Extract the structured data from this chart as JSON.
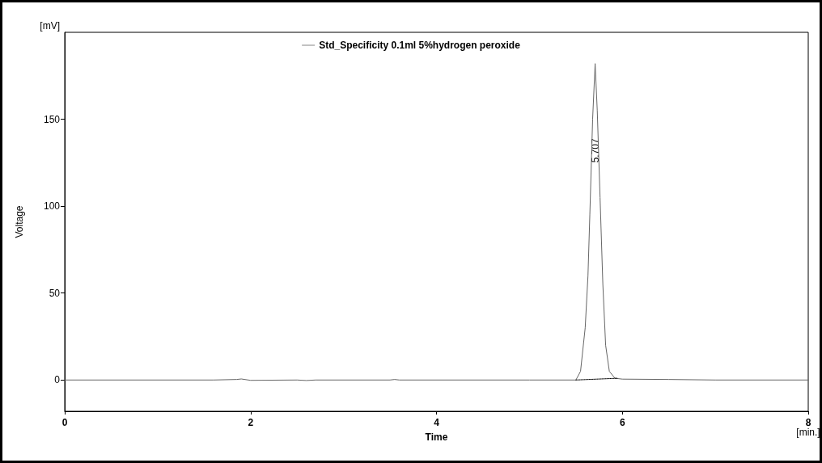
{
  "chart_data": {
    "type": "line",
    "xlabel": "Time",
    "ylabel": "Voltage",
    "xlim": [
      0,
      8
    ],
    "xticks": [
      0,
      2,
      4,
      6,
      8
    ],
    "ylim": [
      -18,
      200
    ],
    "yticks": [
      0,
      50,
      100,
      150
    ],
    "grid": false,
    "legend": "top",
    "marker": "none",
    "annotations": [
      "[mV]",
      "[min.]",
      {
        "text": "5.707",
        "x": 5.707,
        "y": 132
      }
    ],
    "series": [
      {
        "name": "Std_Specificity 0.1ml 5%hydrogen peroxide",
        "color": "#666666",
        "line_style": "solid",
        "x": [
          0,
          1.6,
          1.85,
          1.9,
          1.95,
          2.0,
          2.5,
          2.6,
          2.7,
          3.5,
          3.55,
          3.6,
          5.0,
          5.5,
          5.55,
          5.6,
          5.63,
          5.65,
          5.68,
          5.707,
          5.73,
          5.76,
          5.79,
          5.82,
          5.86,
          5.92,
          6.0,
          6.5,
          7.0,
          8.0
        ],
        "values": [
          0,
          0,
          0.3,
          0.6,
          0.2,
          -0.2,
          0,
          -0.3,
          0,
          0,
          0.3,
          0,
          0,
          0,
          5,
          30,
          60,
          95,
          150,
          182,
          155,
          105,
          55,
          20,
          5,
          1,
          0.5,
          0.3,
          0,
          0
        ]
      },
      {
        "color": "#000000",
        "line_style": "dotted",
        "x": [
          5.5,
          5.95
        ],
        "values": [
          0,
          1
        ]
      }
    ]
  }
}
